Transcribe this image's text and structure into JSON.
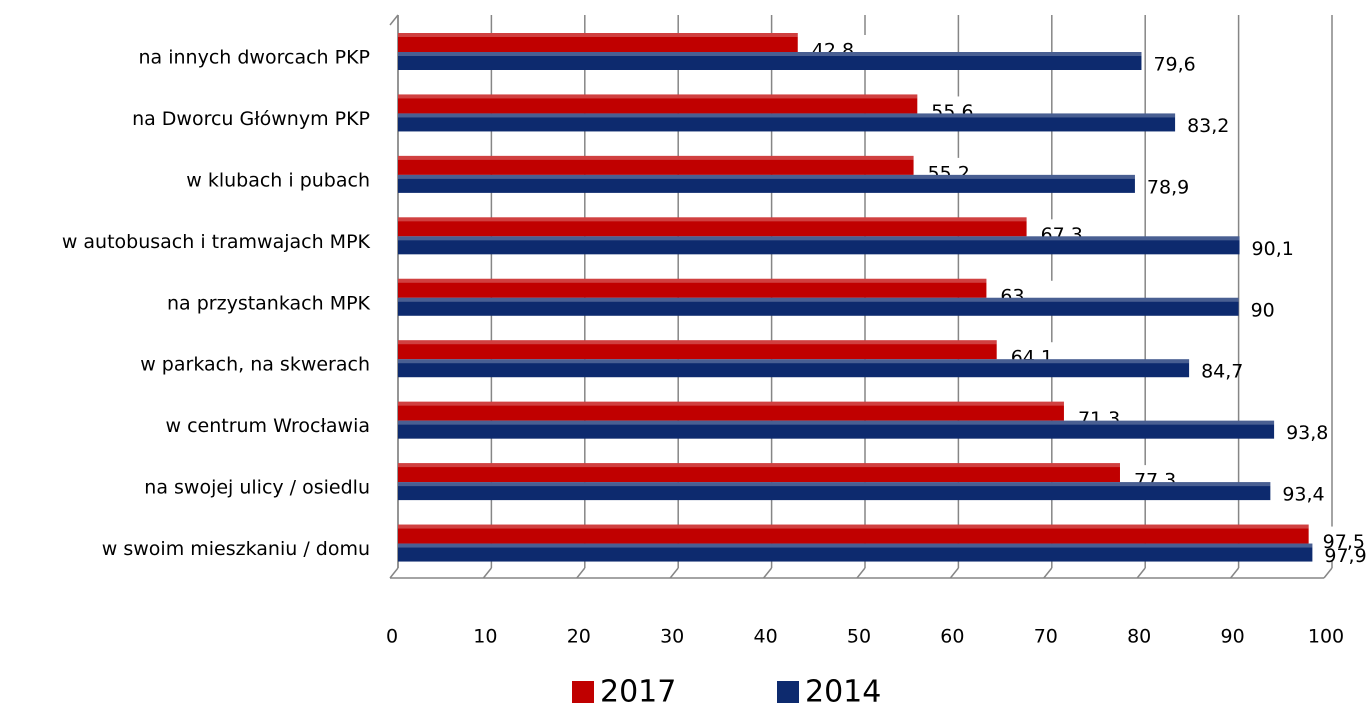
{
  "chart_data": {
    "type": "bar",
    "orientation": "horizontal",
    "categories": [
      "na innych dworcach PKP",
      "na Dworcu Głównym PKP",
      "w klubach i pubach",
      "w autobusach i tramwajach MPK",
      "na przystankach MPK",
      "w parkach, na skwerach",
      "w centrum Wrocławia",
      "na swojej ulicy / osiedlu",
      "w swoim mieszkaniu / domu"
    ],
    "series": [
      {
        "name": "2017",
        "color": "#c00000",
        "values": [
          42.8,
          55.6,
          55.2,
          67.3,
          63,
          64.1,
          71.3,
          77.3,
          97.5
        ],
        "value_labels": [
          "42,8",
          "55,6",
          "55,2",
          "67,3",
          "63",
          "64,1",
          "71,3",
          "77,3",
          "97,5"
        ]
      },
      {
        "name": "2014",
        "color": "#0d2a6e",
        "values": [
          79.6,
          83.2,
          78.9,
          90.1,
          90,
          84.7,
          93.8,
          93.4,
          97.9
        ],
        "value_labels": [
          "79,6",
          "83,2",
          "78,9",
          "90,1",
          "90",
          "84,7",
          "93,8",
          "93,4",
          "97,9"
        ]
      }
    ],
    "xlim": [
      0,
      100
    ],
    "xticks": [
      0,
      10,
      20,
      30,
      40,
      50,
      60,
      70,
      80,
      90,
      100
    ],
    "grid": true,
    "legend": "bottom"
  }
}
